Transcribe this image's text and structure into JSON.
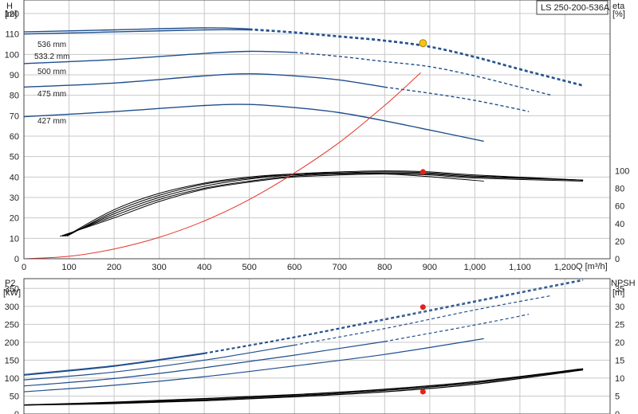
{
  "chart_data": [
    {
      "type": "line",
      "panel": "head-efficiency",
      "title": "LS 250-200-536A",
      "left_axis": {
        "label": "H",
        "unit": "[m]",
        "ylim": [
          0,
          120
        ],
        "ticks": [
          0,
          10,
          20,
          30,
          40,
          50,
          60,
          70,
          80,
          90,
          100,
          110,
          120
        ]
      },
      "right_axis": {
        "label": "eta",
        "unit": "[%]",
        "ylim": [
          0,
          100
        ],
        "ticks": [
          0,
          20,
          40,
          60,
          80,
          100
        ]
      },
      "x_axis": {
        "label": "Q [m³/h]",
        "xlim": [
          0,
          1300
        ],
        "ticks": [
          0,
          100,
          200,
          300,
          400,
          500,
          600,
          700,
          800,
          900,
          1000,
          1100,
          1200
        ],
        "tick_labels": [
          "0",
          "100",
          "200",
          "300",
          "400",
          "500",
          "600",
          "700",
          "800",
          "900",
          "1,000",
          "1,100",
          "1,200"
        ]
      },
      "grid": true,
      "head_curves": [
        {
          "name": "536 mm",
          "x": [
            0,
            200,
            400,
            500,
            600,
            700,
            800,
            900,
            1000,
            1100,
            1240
          ],
          "y": [
            111,
            112,
            113,
            112.5,
            111,
            109,
            107,
            104,
            99,
            93,
            85
          ],
          "dashed_from": 500
        },
        {
          "name": "533.2 mm",
          "x": [
            0,
            200,
            400,
            500,
            600,
            700,
            800,
            900,
            1000,
            1100,
            1240
          ],
          "y": [
            110,
            111,
            112,
            112,
            110.5,
            108.5,
            106.5,
            103.5,
            98.5,
            92.5,
            84.5
          ],
          "dashed_from": 500
        },
        {
          "name": "500 mm",
          "x": [
            0,
            200,
            400,
            500,
            600,
            700,
            800,
            900,
            1000,
            1100,
            1170
          ],
          "y": [
            95.5,
            97.5,
            100.5,
            101.5,
            101,
            99,
            96.5,
            94,
            89.5,
            84,
            80
          ],
          "dashed_from": 640
        },
        {
          "name": "475 mm",
          "x": [
            0,
            200,
            400,
            500,
            600,
            700,
            800,
            900,
            1000,
            1100,
            1120
          ],
          "y": [
            84,
            86,
            89.5,
            90.5,
            89.5,
            87.5,
            84,
            81,
            77.5,
            73,
            72
          ],
          "dashed_from": 800
        },
        {
          "name": "427 mm",
          "x": [
            0,
            200,
            400,
            500,
            600,
            700,
            800,
            900,
            1020
          ],
          "y": [
            69.5,
            72,
            75,
            75.5,
            74,
            71.5,
            67.5,
            63,
            57.5
          ],
          "dashed_from": null
        }
      ],
      "efficiency_curves": [
        {
          "x": [
            80,
            200,
            300,
            400,
            500,
            600,
            700,
            800,
            900,
            1000,
            1240
          ],
          "y": [
            11,
            20,
            28,
            34,
            37.5,
            40,
            41,
            41.5,
            41,
            39.5,
            38
          ]
        },
        {
          "x": [
            85,
            200,
            300,
            400,
            500,
            600,
            700,
            800,
            900,
            1000,
            1240
          ],
          "y": [
            11,
            21,
            29,
            34.5,
            38,
            40.5,
            41.5,
            42,
            41.5,
            40,
            38.5
          ]
        },
        {
          "x": [
            90,
            200,
            300,
            400,
            500,
            600,
            700,
            800,
            900,
            1000,
            1240
          ],
          "y": [
            11,
            22,
            30,
            35.5,
            39,
            41,
            42,
            42.5,
            42,
            40.5,
            38.5
          ]
        },
        {
          "x": [
            95,
            200,
            300,
            400,
            500,
            600,
            700,
            800,
            900,
            1000,
            1240
          ],
          "y": [
            11,
            23,
            31,
            36.5,
            39.5,
            41.5,
            42.5,
            43,
            42.5,
            41,
            38.5
          ]
        },
        {
          "x": [
            100,
            200,
            300,
            400,
            500,
            600,
            700,
            800,
            880,
            1020
          ],
          "y": [
            12,
            24,
            32,
            37,
            40,
            41.5,
            42,
            41.5,
            40.5,
            38
          ]
        }
      ],
      "system_curve": {
        "x": [
          0,
          100,
          200,
          300,
          400,
          500,
          600,
          700,
          800,
          880
        ],
        "y": [
          0,
          1.2,
          4.8,
          10.5,
          18.5,
          29,
          42,
          57,
          75,
          91
        ]
      },
      "duty_point": {
        "x": 885,
        "y": 105.5
      },
      "efficiency_point": {
        "x": 885,
        "y": 42.5
      }
    },
    {
      "type": "line",
      "panel": "power-npsh",
      "left_axis": {
        "label": "P2",
        "unit": "[kW]",
        "ylim": [
          0,
          375
        ],
        "ticks": [
          0,
          50,
          100,
          150,
          200,
          250,
          300,
          350
        ]
      },
      "right_axis": {
        "label": "NPSH",
        "unit": "[m]",
        "ylim": [
          0,
          37.5
        ],
        "ticks": [
          0,
          5,
          10,
          15,
          20,
          25,
          30,
          35
        ]
      },
      "x_axis": {
        "xlim": [
          0,
          1300
        ]
      },
      "grid": true,
      "power_curves": [
        {
          "name": "536 mm",
          "x": [
            0,
            200,
            400,
            600,
            800,
            1000,
            1240
          ],
          "y": [
            110,
            135,
            170,
            215,
            265,
            315,
            375
          ],
          "dashed_from": 500
        },
        {
          "name": "533.2 mm",
          "x": [
            0,
            200,
            400,
            600,
            800,
            1000,
            1240
          ],
          "y": [
            108,
            133,
            168,
            213,
            262,
            312,
            372
          ],
          "dashed_from": 500
        },
        {
          "name": "500 mm",
          "x": [
            0,
            200,
            400,
            600,
            800,
            1000,
            1170
          ],
          "y": [
            95,
            117,
            150,
            192,
            238,
            290,
            330
          ],
          "dashed_from": 640
        },
        {
          "name": "475 mm",
          "x": [
            0,
            200,
            400,
            600,
            800,
            1000,
            1120
          ],
          "y": [
            78,
            99,
            129,
            164,
            202,
            248,
            278
          ],
          "dashed_from": 800
        },
        {
          "name": "427 mm",
          "x": [
            0,
            200,
            400,
            600,
            800,
            1020
          ],
          "y": [
            62,
            80,
            104,
            134,
            166,
            210
          ],
          "dashed_from": null
        }
      ],
      "npsh_curves": [
        {
          "x": [
            0,
            200,
            400,
            600,
            800,
            1000,
            1240
          ],
          "y": [
            2.5,
            2.9,
            3.7,
            4.8,
            6.2,
            8.3,
            12.3
          ]
        },
        {
          "x": [
            0,
            200,
            400,
            600,
            800,
            1000,
            1240
          ],
          "y": [
            2.5,
            3.1,
            4.0,
            5.1,
            6.6,
            8.7,
            12.5
          ]
        },
        {
          "x": [
            0,
            200,
            400,
            600,
            800,
            1000,
            1240
          ],
          "y": [
            2.5,
            3.3,
            4.3,
            5.4,
            6.9,
            9.0,
            12.6
          ]
        }
      ],
      "power_point": {
        "x": 885,
        "y": 298
      },
      "npsh_point": {
        "x": 885,
        "y": 6.2
      }
    }
  ],
  "colors": {
    "head": "#1f4e8c",
    "efficiency": "#000000",
    "system": "#e8342a",
    "duty_fill": "#f5c518",
    "point": "#e8201a",
    "grid": "#c8c8c8"
  }
}
